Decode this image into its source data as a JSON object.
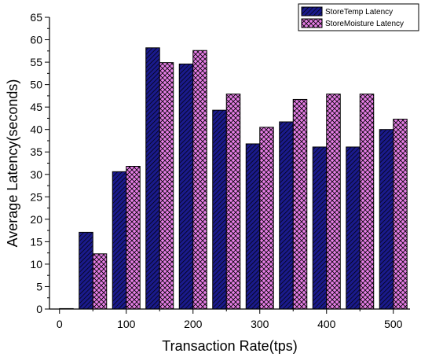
{
  "chart_data": {
    "type": "bar",
    "title": "",
    "xlabel": "Transaction Rate(tps)",
    "ylabel": "Average Latency(seconds)",
    "x": [
      0,
      50,
      100,
      150,
      200,
      250,
      300,
      350,
      400,
      450,
      500
    ],
    "x_tick_labels": [
      "0",
      "100",
      "200",
      "300",
      "400",
      "500"
    ],
    "x_tick_values": [
      0,
      100,
      200,
      300,
      400,
      500
    ],
    "xlim": [
      -15,
      525
    ],
    "ylim": [
      0,
      65
    ],
    "y_tick_labels": [
      "0",
      "5",
      "10",
      "15",
      "20",
      "25",
      "30",
      "35",
      "40",
      "45",
      "50",
      "55",
      "60",
      "65"
    ],
    "y_tick_values": [
      0,
      5,
      10,
      15,
      20,
      25,
      30,
      35,
      40,
      45,
      50,
      55,
      60,
      65
    ],
    "grid": false,
    "legend_position": "top-right",
    "series": [
      {
        "name": "StoreTemp Latency",
        "color": "#1a1a8c",
        "pattern": "diagonal-hatch",
        "values": [
          0,
          17.1,
          30.6,
          58.2,
          54.6,
          44.3,
          36.8,
          41.7,
          36.1,
          36.1,
          40.0
        ]
      },
      {
        "name": "StoreMoisture Latency",
        "color": "#e67ee6",
        "pattern": "crosshatch",
        "values": [
          0.1,
          12.3,
          31.8,
          54.9,
          57.6,
          47.9,
          40.5,
          46.7,
          47.9,
          47.9,
          42.3
        ]
      }
    ]
  }
}
